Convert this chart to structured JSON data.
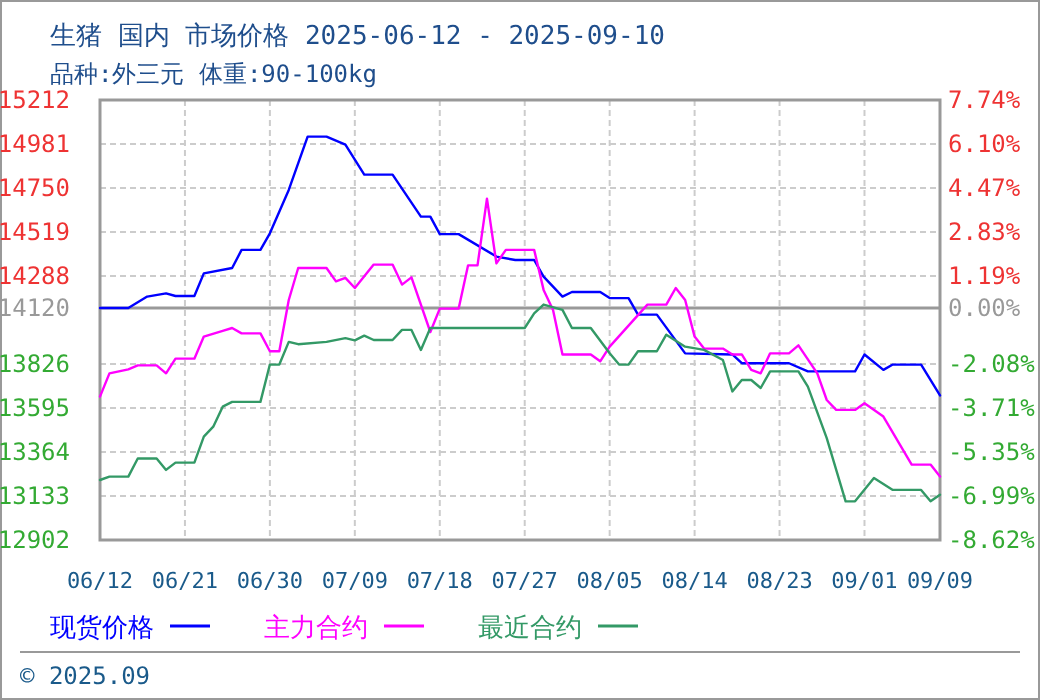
{
  "chart_data": {
    "type": "line",
    "title": "生猪 国内 市场价格 2025-06-12 - 2025-09-10",
    "subtitle": "品种:外三元 体重:90-100kg",
    "annotations": [
      "© 2025.09"
    ],
    "xlim": [
      "--06-12",
      "--09-09"
    ],
    "xticks": [
      {
        "value": "--06-12",
        "label": "06/12"
      },
      {
        "value": "--06-21",
        "label": "06/21"
      },
      {
        "value": "--06-30",
        "label": "06/30"
      },
      {
        "value": "--07-09",
        "label": "07/09"
      },
      {
        "value": "--07-18",
        "label": "07/18"
      },
      {
        "value": "--07-27",
        "label": "07/27"
      },
      {
        "value": "--08-05",
        "label": "08/05"
      },
      {
        "value": "--08-14",
        "label": "08/14"
      },
      {
        "value": "--08-23",
        "label": "08/23"
      },
      {
        "value": "--09-01",
        "label": "09/01"
      },
      {
        "value": "--09-09",
        "label": "09/09"
      }
    ],
    "ylim": [
      12902,
      15212
    ],
    "yticks": [
      12902,
      13133,
      13364,
      13595,
      13826,
      14120,
      14288,
      14519,
      14750,
      14981,
      15212
    ],
    "y2lim": [
      -8.62,
      7.74
    ],
    "y2ticks": [
      {
        "value": -8.62,
        "label": "-8.62%"
      },
      {
        "value": -6.99,
        "label": "-6.99%"
      },
      {
        "value": -5.35,
        "label": "-5.35%"
      },
      {
        "value": -3.71,
        "label": "-3.71%"
      },
      {
        "value": -2.08,
        "label": "-2.08%"
      },
      {
        "value": 0,
        "label": "0.00%"
      },
      {
        "value": 1.19,
        "label": "1.19%"
      },
      {
        "value": 2.83,
        "label": "2.83%"
      },
      {
        "value": 4.47,
        "label": "4.47%"
      },
      {
        "value": 6.1,
        "label": "6.10%"
      },
      {
        "value": 7.74,
        "label": "7.74%"
      }
    ],
    "ref_lines": [
      {
        "axis": "y",
        "value": 14120,
        "color": "#999999"
      }
    ],
    "grid": true,
    "legend": "bottom",
    "line_style": "solid",
    "marker": "none",
    "series": [
      {
        "name": "现货价格",
        "color": "#0000ff",
        "x": [
          "--06-12",
          "--06-15",
          "--06-17",
          "--06-19",
          "--06-20",
          "--06-22",
          "--06-23",
          "--06-26",
          "--06-27",
          "--06-29",
          "--06-30",
          "--07-02",
          "--07-04",
          "--07-06",
          "--07-08",
          "--07-10",
          "--07-13",
          "--07-16",
          "--07-17",
          "--07-18",
          "--07-20",
          "--07-24",
          "--07-26",
          "--07-28",
          "--07-29",
          "--07-31",
          "--08-01",
          "--08-04",
          "--08-05",
          "--08-07",
          "--08-08",
          "--08-10",
          "--08-13",
          "--08-18",
          "--08-19",
          "--08-24",
          "--08-26",
          "--08-31",
          "--09-01",
          "--09-03",
          "--09-04",
          "--09-07",
          "--09-09"
        ],
        "values": [
          14120,
          14120,
          14180,
          14197,
          14183,
          14183,
          14302,
          14330,
          14425,
          14425,
          14512,
          14740,
          15020,
          15020,
          14978,
          14820,
          14820,
          14600,
          14600,
          14508,
          14508,
          14390,
          14372,
          14372,
          14285,
          14180,
          14204,
          14204,
          14172,
          14172,
          14085,
          14085,
          13882,
          13876,
          13830,
          13830,
          13787,
          13787,
          13876,
          13795,
          13823,
          13823,
          13661
        ]
      },
      {
        "name": "主力合约",
        "color": "#ff00ff",
        "x": [
          "--06-12",
          "--06-13",
          "--06-15",
          "--06-16",
          "--06-18",
          "--06-19",
          "--06-20",
          "--06-22",
          "--06-23",
          "--06-25",
          "--06-26",
          "--06-27",
          "--06-29",
          "--06-30",
          "--07-01",
          "--07-02",
          "--07-03",
          "--07-06",
          "--07-07",
          "--07-08",
          "--07-09",
          "--07-11",
          "--07-13",
          "--07-14",
          "--07-15",
          "--07-17",
          "--07-18",
          "--07-20",
          "--07-21",
          "--07-22",
          "--07-23",
          "--07-24",
          "--07-25",
          "--07-28",
          "--07-29",
          "--07-30",
          "--07-31",
          "--08-03",
          "--08-04",
          "--08-05",
          "--08-09",
          "--08-11",
          "--08-12",
          "--08-13",
          "--08-14",
          "--08-15",
          "--08-17",
          "--08-18",
          "--08-19",
          "--08-20",
          "--08-21",
          "--08-22",
          "--08-24",
          "--08-25",
          "--08-27",
          "--08-28",
          "--08-29",
          "--08-31",
          "--09-01",
          "--09-03",
          "--09-06",
          "--09-08",
          "--09-09"
        ],
        "values": [
          13655,
          13777,
          13798,
          13819,
          13819,
          13777,
          13854,
          13854,
          13970,
          14000,
          14015,
          13987,
          13987,
          13893,
          13893,
          14162,
          14330,
          14330,
          14260,
          14278,
          14225,
          14348,
          14348,
          14243,
          14281,
          13994,
          14117,
          14117,
          14344,
          14344,
          14694,
          14354,
          14425,
          14425,
          14215,
          14110,
          13876,
          13876,
          13840,
          13917,
          14138,
          14138,
          14225,
          14162,
          13970,
          13907,
          13907,
          13876,
          13876,
          13795,
          13777,
          13882,
          13882,
          13924,
          13777,
          13637,
          13585,
          13585,
          13620,
          13550,
          13298,
          13298,
          13235
        ]
      },
      {
        "name": "最近合约",
        "color": "#339966",
        "x": [
          "--06-12",
          "--06-13",
          "--06-15",
          "--06-16",
          "--06-18",
          "--06-19",
          "--06-20",
          "--06-22",
          "--06-23",
          "--06-24",
          "--06-25",
          "--06-26",
          "--06-29",
          "--06-30",
          "--07-01",
          "--07-02",
          "--07-03",
          "--07-06",
          "--07-08",
          "--07-09",
          "--07-10",
          "--07-11",
          "--07-13",
          "--07-14",
          "--07-15",
          "--07-16",
          "--07-17",
          "--07-27",
          "--07-28",
          "--07-29",
          "--07-31",
          "--08-01",
          "--08-03",
          "--08-05",
          "--08-06",
          "--08-07",
          "--08-08",
          "--08-10",
          "--08-11",
          "--08-13",
          "--08-15",
          "--08-17",
          "--08-18",
          "--08-19",
          "--08-20",
          "--08-21",
          "--08-22",
          "--08-25",
          "--08-26",
          "--08-28",
          "--08-30",
          "--08-31",
          "--09-02",
          "--09-04",
          "--09-07",
          "--09-08",
          "--09-09"
        ],
        "values": [
          13217,
          13235,
          13235,
          13330,
          13330,
          13270,
          13308,
          13308,
          13445,
          13497,
          13602,
          13627,
          13627,
          13823,
          13823,
          13942,
          13930,
          13942,
          13962,
          13950,
          13975,
          13952,
          13952,
          14005,
          14005,
          13900,
          14015,
          14015,
          14092,
          14138,
          14110,
          14015,
          14015,
          13882,
          13823,
          13823,
          13893,
          13893,
          13980,
          13917,
          13900,
          13847,
          13682,
          13742,
          13742,
          13700,
          13787,
          13787,
          13707,
          13437,
          13105,
          13105,
          13227,
          13165,
          13165,
          13105,
          13140
        ]
      }
    ]
  }
}
